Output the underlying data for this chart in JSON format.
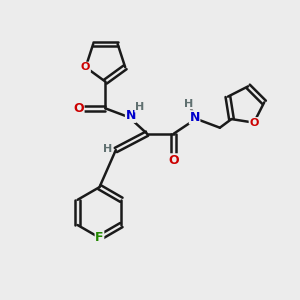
{
  "bg_color": "#ececec",
  "bond_color": "#1a1a1a",
  "bond_width": 1.8,
  "dbl_sep": 0.08,
  "atom_colors": {
    "O": "#cc0000",
    "N": "#0000cc",
    "F": "#228800",
    "H": "#607070",
    "C": "#1a1a1a"
  },
  "fig_width": 3.0,
  "fig_height": 3.0,
  "dpi": 100
}
